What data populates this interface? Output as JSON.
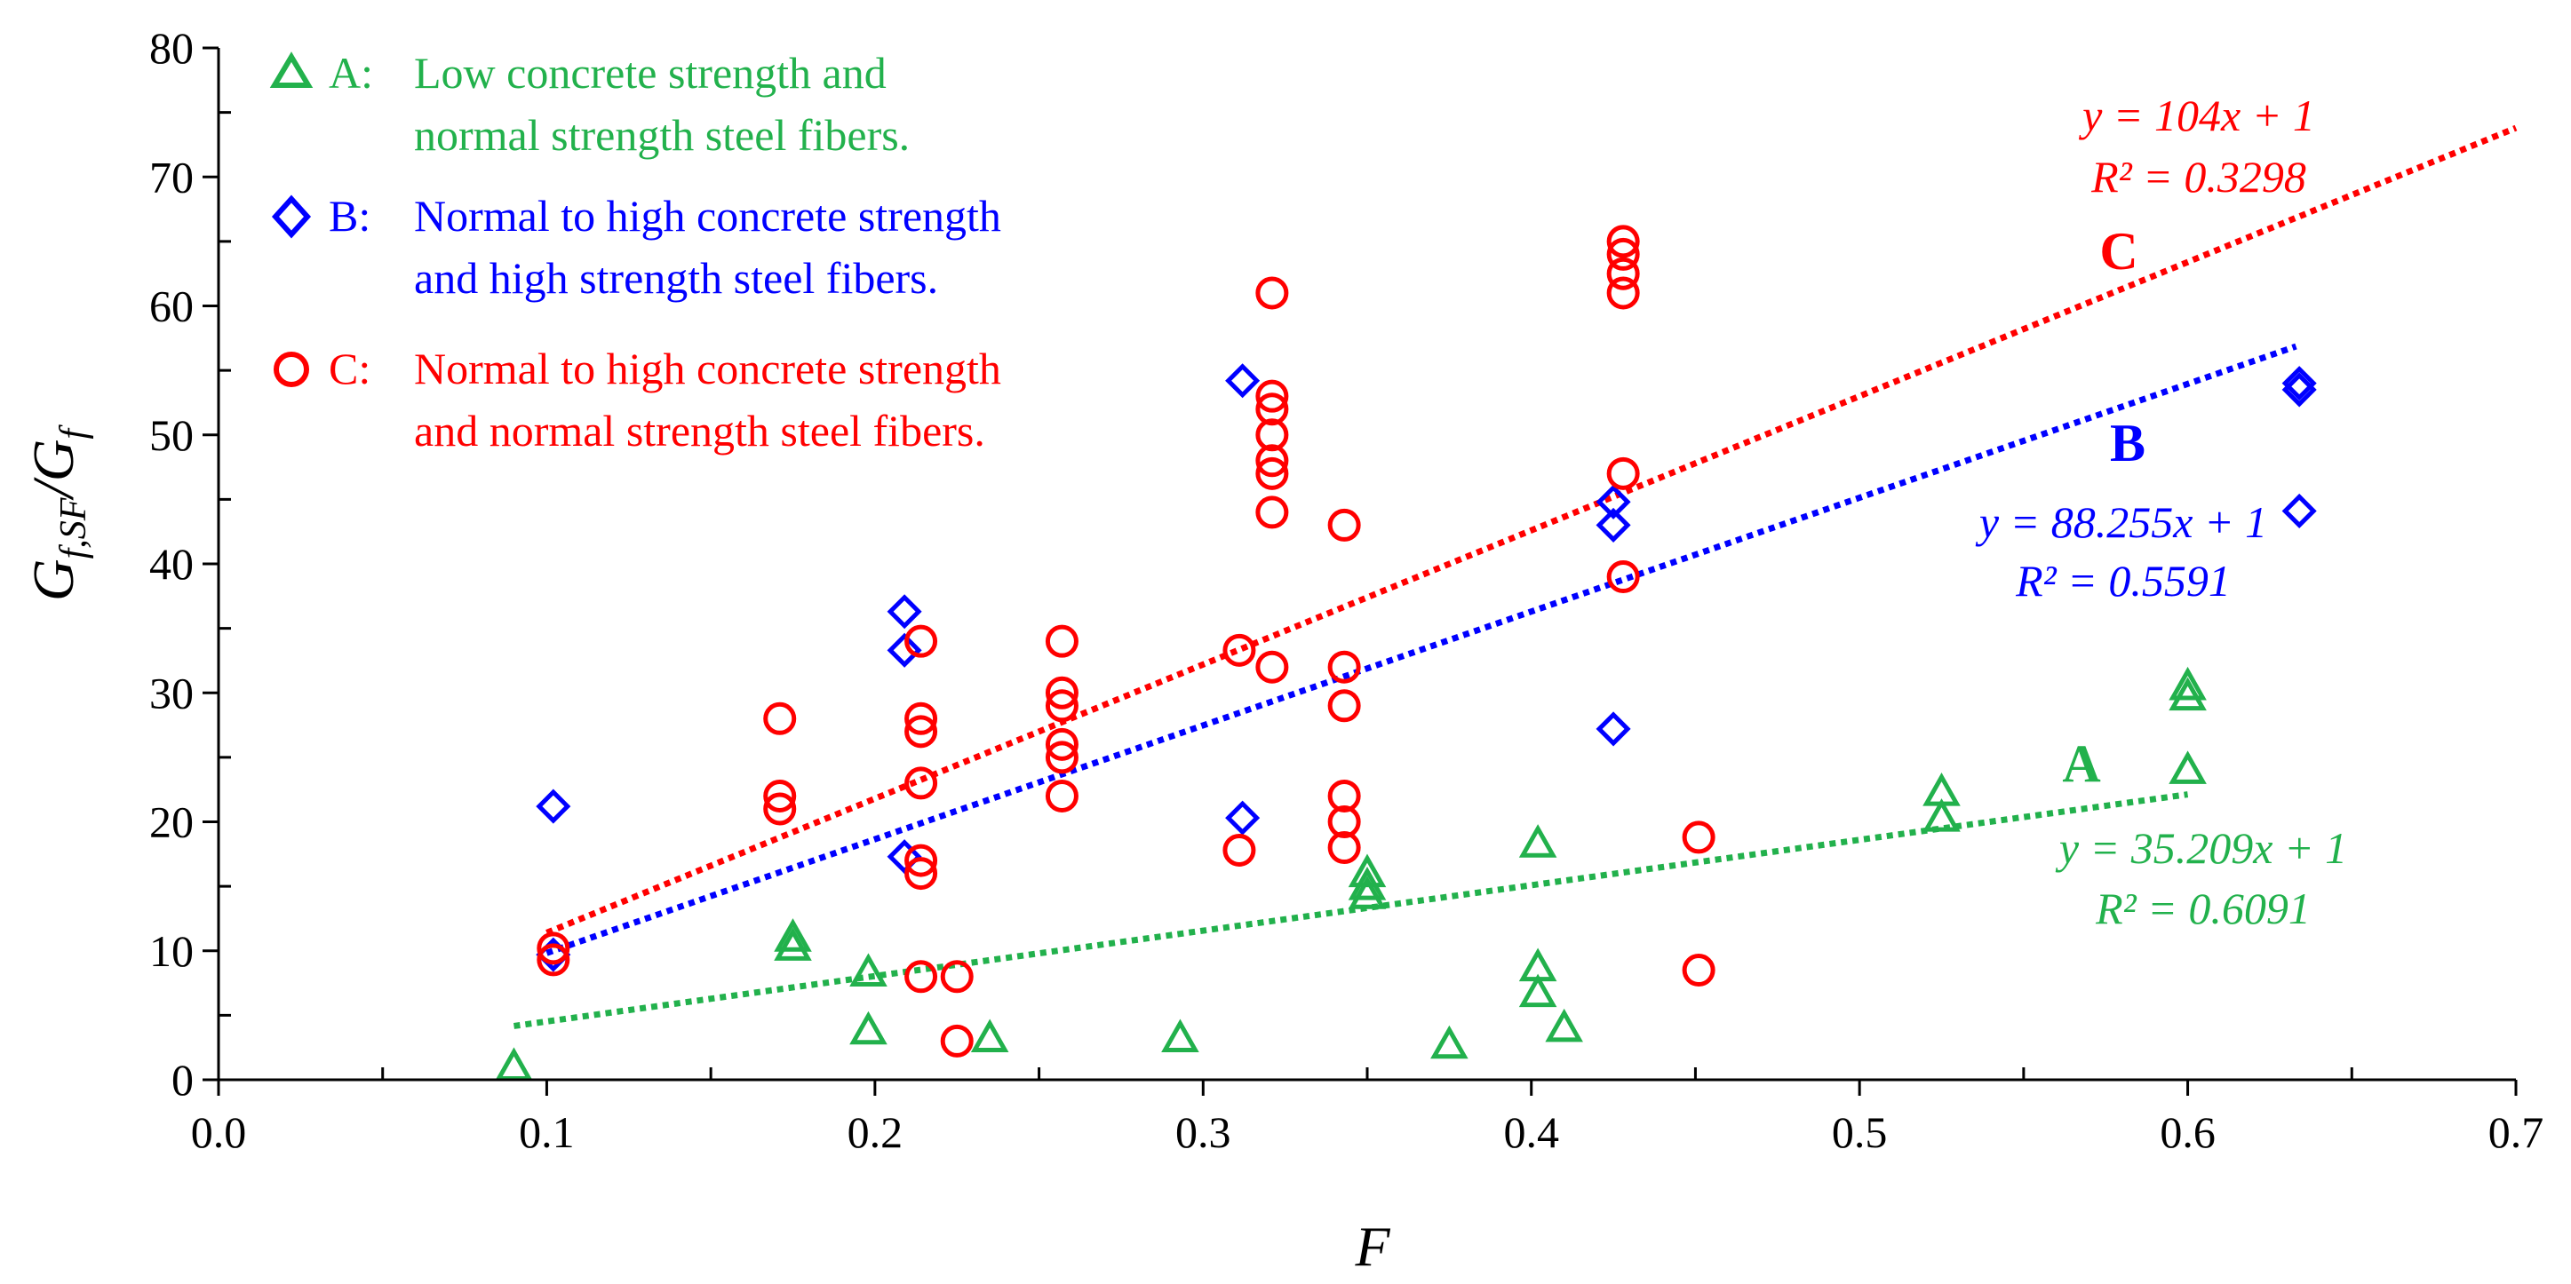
{
  "chart_data": {
    "type": "scatter",
    "xlabel": "F",
    "ylabel": {
      "base1": "G",
      "sub1": "f,SF",
      "slash": "/",
      "base2": "G",
      "sub2": "f"
    },
    "xlim": [
      0,
      0.7
    ],
    "ylim": [
      0,
      80
    ],
    "x_ticks": [
      "0.0",
      "0.1",
      "0.2",
      "0.3",
      "0.4",
      "0.5",
      "0.6",
      "0.7"
    ],
    "y_ticks": [
      "0",
      "10",
      "20",
      "30",
      "40",
      "50",
      "60",
      "70",
      "80"
    ],
    "x_tick_values": [
      0,
      0.1,
      0.2,
      0.3,
      0.4,
      0.5,
      0.6,
      0.7
    ],
    "y_tick_values": [
      0,
      10,
      20,
      30,
      40,
      50,
      60,
      70,
      80
    ],
    "series": [
      {
        "name": "A",
        "marker": "triangle",
        "color": "#22b14c",
        "legend_key": "A:",
        "legend_lines": [
          "Low concrete strength and",
          "normal strength steel fibers."
        ],
        "trend_label": "A",
        "equation": "y = 35.209x + 1",
        "r2": "R² = 0.6091",
        "slope": 35.209,
        "intercept": 1,
        "fit_range": [
          0.09,
          0.6
        ],
        "points": [
          [
            0.09,
            1.0
          ],
          [
            0.175,
            11.0
          ],
          [
            0.175,
            10.3
          ],
          [
            0.198,
            8.3
          ],
          [
            0.198,
            3.8
          ],
          [
            0.235,
            3.2
          ],
          [
            0.293,
            3.2
          ],
          [
            0.35,
            16.0
          ],
          [
            0.35,
            15.0
          ],
          [
            0.35,
            14.3
          ],
          [
            0.375,
            2.7
          ],
          [
            0.402,
            18.3
          ],
          [
            0.402,
            8.7
          ],
          [
            0.402,
            6.7
          ],
          [
            0.41,
            4.0
          ],
          [
            0.525,
            22.3
          ],
          [
            0.525,
            20.3
          ],
          [
            0.6,
            30.5
          ],
          [
            0.6,
            29.7
          ],
          [
            0.6,
            24.0
          ]
        ]
      },
      {
        "name": "B",
        "marker": "diamond",
        "color": "#0000ff",
        "legend_key": "B:",
        "legend_lines": [
          "Normal to high concrete strength",
          "and high strength steel fibers."
        ],
        "trend_label": "B",
        "equation": "y = 88.255x + 1",
        "r2": "R² = 0.5591",
        "slope": 88.255,
        "intercept": 1,
        "fit_range": [
          0.1,
          0.633
        ],
        "points": [
          [
            0.102,
            21.2
          ],
          [
            0.102,
            9.7
          ],
          [
            0.209,
            36.3
          ],
          [
            0.209,
            33.3
          ],
          [
            0.209,
            17.3
          ],
          [
            0.312,
            54.2
          ],
          [
            0.312,
            20.3
          ],
          [
            0.425,
            44.8
          ],
          [
            0.425,
            43.0
          ],
          [
            0.425,
            27.2
          ],
          [
            0.634,
            54.0
          ],
          [
            0.634,
            53.5
          ],
          [
            0.634,
            44.1
          ]
        ]
      },
      {
        "name": "C",
        "marker": "circle",
        "color": "#ff0000",
        "legend_key": "C:",
        "legend_lines": [
          "Normal to high concrete strength",
          "and normal strength steel fibers."
        ],
        "trend_label": "C",
        "equation": "y = 104x + 1",
        "r2": "R² = 0.3298",
        "slope": 104,
        "intercept": 1,
        "fit_range": [
          0.1,
          0.7
        ],
        "points": [
          [
            0.102,
            10.2
          ],
          [
            0.102,
            9.3
          ],
          [
            0.171,
            28.0
          ],
          [
            0.171,
            22.0
          ],
          [
            0.171,
            21.0
          ],
          [
            0.214,
            34.0
          ],
          [
            0.214,
            28.0
          ],
          [
            0.214,
            27.0
          ],
          [
            0.214,
            23.0
          ],
          [
            0.214,
            17.0
          ],
          [
            0.214,
            16.0
          ],
          [
            0.214,
            8.0
          ],
          [
            0.225,
            8.0
          ],
          [
            0.225,
            3.0
          ],
          [
            0.257,
            34.0
          ],
          [
            0.257,
            30.0
          ],
          [
            0.257,
            29.0
          ],
          [
            0.257,
            26.0
          ],
          [
            0.257,
            25.0
          ],
          [
            0.257,
            22.0
          ],
          [
            0.311,
            33.3
          ],
          [
            0.311,
            17.8
          ],
          [
            0.321,
            61.0
          ],
          [
            0.321,
            53.0
          ],
          [
            0.321,
            52.0
          ],
          [
            0.321,
            50.0
          ],
          [
            0.321,
            48.0
          ],
          [
            0.321,
            47.0
          ],
          [
            0.321,
            44.0
          ],
          [
            0.321,
            32.0
          ],
          [
            0.343,
            43.0
          ],
          [
            0.343,
            32.0
          ],
          [
            0.343,
            29.0
          ],
          [
            0.343,
            22.0
          ],
          [
            0.343,
            20.0
          ],
          [
            0.343,
            18.0
          ],
          [
            0.428,
            65.0
          ],
          [
            0.428,
            64.0
          ],
          [
            0.428,
            62.5
          ],
          [
            0.428,
            61.0
          ],
          [
            0.428,
            47.0
          ],
          [
            0.428,
            39.0
          ],
          [
            0.451,
            18.8
          ],
          [
            0.451,
            8.5
          ]
        ]
      }
    ]
  }
}
